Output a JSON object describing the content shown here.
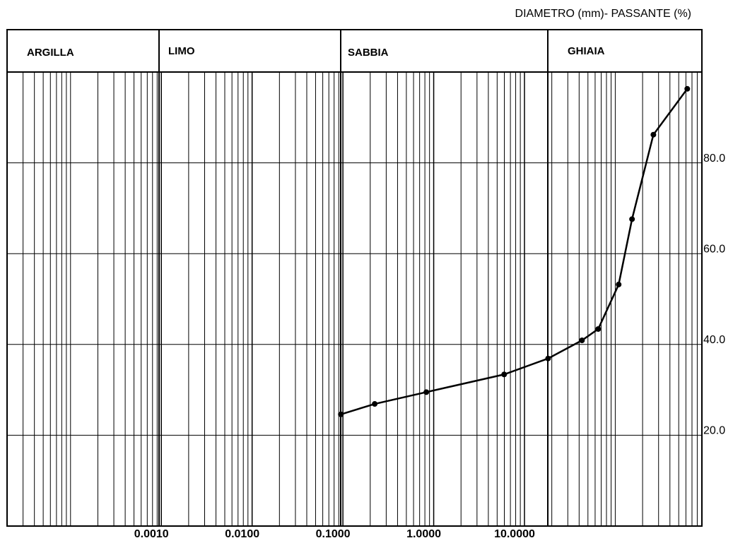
{
  "chart_data": {
    "type": "line",
    "title": "DIAMETRO (mm)- PASSANTE (%)",
    "zones": [
      "ARGILLA",
      "LIMO",
      "SABBIA",
      "GHIAIA"
    ],
    "x": [
      0.095,
      0.224,
      0.83,
      5.97,
      18.2,
      43,
      64.9,
      109,
      153,
      263,
      621
    ],
    "series": [
      {
        "color": "#000000",
        "values": [
          24.6,
          26.9,
          29.5,
          33.4,
          36.9,
          40.9,
          43.4,
          53.2,
          67.6,
          86.2,
          96.3
        ]
      }
    ],
    "xlog": true,
    "xlim": [
      2e-05,
      900
    ],
    "xticks": [
      {
        "value": 0.001,
        "label": "0.0010"
      },
      {
        "value": 0.01,
        "label": "0.0100"
      },
      {
        "value": 0.1,
        "label": "0.1000"
      },
      {
        "value": 1,
        "label": "1.0000"
      },
      {
        "value": 10,
        "label": "10.0000"
      }
    ],
    "ylim": [
      0,
      100
    ],
    "yticks": [
      {
        "value": 20,
        "label": "20.0"
      },
      {
        "value": 40,
        "label": "40.0"
      },
      {
        "value": 60,
        "label": "60.0"
      },
      {
        "value": 80,
        "label": "80.0"
      }
    ],
    "grid": true
  }
}
